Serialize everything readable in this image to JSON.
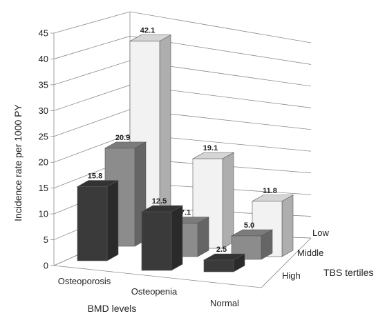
{
  "chart_data": {
    "type": "bar",
    "subtype": "3d-grouped",
    "categories": [
      "Osteoporosis",
      "Osteopenia",
      "Normal"
    ],
    "series": [
      {
        "name": "Low",
        "values": [
          42.1,
          19.1,
          11.8
        ],
        "color": "#f2f2f2"
      },
      {
        "name": "Middle",
        "values": [
          20.9,
          7.1,
          5.0
        ],
        "color": "#8c8c8c"
      },
      {
        "name": "High",
        "values": [
          15.8,
          12.5,
          2.5
        ],
        "color": "#3a3a3a"
      }
    ],
    "value_labels": [
      [
        "42.1",
        "19.1",
        "11.8"
      ],
      [
        "20.9",
        "7.1",
        "5.0"
      ],
      [
        "15.8",
        "12.5",
        "2.5"
      ]
    ],
    "ylabel": "Incidence rate per 1000 PY",
    "xlabel": "BMD levels",
    "zlabel": "TBS tertiles",
    "ylim": [
      0,
      45
    ],
    "yticks": [
      "0",
      "5",
      "10",
      "15",
      "20",
      "25",
      "30",
      "35",
      "40",
      "45"
    ],
    "grid": true
  }
}
